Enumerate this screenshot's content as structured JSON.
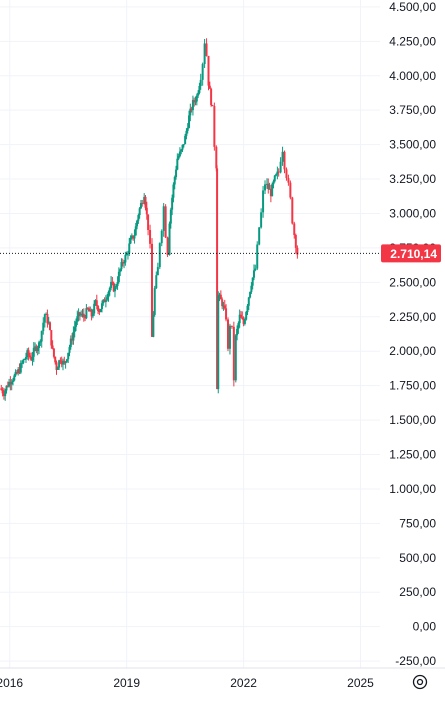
{
  "chart_data": {
    "type": "candlestick",
    "title": "",
    "xlabel": "",
    "ylabel": "",
    "x_ticks": [
      "2016",
      "2019",
      "2022",
      "2025"
    ],
    "y_ticks": [
      "4.500,00",
      "4.250,00",
      "4.000,00",
      "3.750,00",
      "3.500,00",
      "3.250,00",
      "3.000,00",
      "2.750,00",
      "2.500,00",
      "2.250,00",
      "2.000,00",
      "1.750,00",
      "1.500,00",
      "1.250,00",
      "1.000,00",
      "750,00",
      "500,00",
      "250,00",
      "0,00",
      "-250,00"
    ],
    "y_tick_values": [
      4500,
      4250,
      4000,
      3750,
      3500,
      3250,
      3000,
      2750,
      2500,
      2250,
      2000,
      1750,
      1500,
      1250,
      1000,
      750,
      500,
      250,
      0,
      -250
    ],
    "ylim": [
      -300,
      4550
    ],
    "xlim": [
      2015.75,
      2025.5
    ],
    "last_price": 2710.14,
    "last_price_label": "2.710,14",
    "grid": true,
    "colors": {
      "up": "#089981",
      "down": "#f23645",
      "price_label_bg": "#f23645",
      "grid": "#f0f3fa",
      "text": "#131722"
    },
    "series": [
      {
        "values": [
          [
            2015.75,
            1730
          ],
          [
            2015.85,
            1700
          ],
          [
            2015.95,
            1760
          ],
          [
            2016.05,
            1800
          ],
          [
            2016.15,
            1820
          ],
          [
            2016.25,
            1870
          ],
          [
            2016.35,
            1930
          ],
          [
            2016.45,
            1980
          ],
          [
            2016.55,
            1950
          ],
          [
            2016.65,
            2020
          ],
          [
            2016.75,
            2050
          ],
          [
            2016.82,
            2150
          ],
          [
            2016.9,
            2270
          ],
          [
            2017.0,
            2200
          ],
          [
            2017.1,
            2000
          ],
          [
            2017.2,
            1880
          ],
          [
            2017.3,
            1950
          ],
          [
            2017.4,
            1900
          ],
          [
            2017.5,
            2000
          ],
          [
            2017.6,
            2100
          ],
          [
            2017.7,
            2220
          ],
          [
            2017.8,
            2270
          ],
          [
            2017.9,
            2250
          ],
          [
            2018.0,
            2300
          ],
          [
            2018.1,
            2260
          ],
          [
            2018.2,
            2350
          ],
          [
            2018.3,
            2300
          ],
          [
            2018.4,
            2350
          ],
          [
            2018.5,
            2420
          ],
          [
            2018.6,
            2480
          ],
          [
            2018.7,
            2450
          ],
          [
            2018.8,
            2560
          ],
          [
            2018.9,
            2650
          ],
          [
            2019.0,
            2700
          ],
          [
            2019.1,
            2800
          ],
          [
            2019.2,
            2850
          ],
          [
            2019.3,
            3000
          ],
          [
            2019.4,
            3100
          ],
          [
            2019.45,
            3150
          ],
          [
            2019.55,
            2900
          ],
          [
            2019.6,
            2750
          ],
          [
            2019.65,
            2100
          ],
          [
            2019.72,
            2450
          ],
          [
            2019.8,
            2600
          ],
          [
            2019.85,
            2800
          ],
          [
            2019.9,
            2900
          ],
          [
            2019.95,
            3050
          ],
          [
            2020.0,
            2850
          ],
          [
            2020.05,
            2720
          ],
          [
            2020.1,
            2950
          ],
          [
            2020.2,
            3200
          ],
          [
            2020.3,
            3400
          ],
          [
            2020.4,
            3450
          ],
          [
            2020.5,
            3550
          ],
          [
            2020.6,
            3700
          ],
          [
            2020.7,
            3800
          ],
          [
            2020.8,
            3850
          ],
          [
            2020.9,
            4000
          ],
          [
            2020.95,
            4100
          ],
          [
            2021.0,
            4250
          ],
          [
            2021.05,
            4150
          ],
          [
            2021.1,
            3950
          ],
          [
            2021.2,
            3750
          ],
          [
            2021.25,
            3500
          ],
          [
            2021.3,
            3350
          ],
          [
            2021.32,
            1750
          ],
          [
            2021.35,
            2400
          ],
          [
            2021.45,
            2350
          ],
          [
            2021.55,
            2250
          ],
          [
            2021.6,
            2000
          ],
          [
            2021.65,
            2200
          ],
          [
            2021.7,
            2150
          ],
          [
            2021.75,
            1800
          ],
          [
            2021.8,
            2100
          ],
          [
            2021.9,
            2250
          ],
          [
            2022.0,
            2200
          ],
          [
            2022.1,
            2350
          ],
          [
            2022.2,
            2500
          ],
          [
            2022.3,
            2600
          ],
          [
            2022.35,
            2750
          ],
          [
            2022.4,
            2900
          ],
          [
            2022.45,
            3000
          ],
          [
            2022.5,
            3150
          ],
          [
            2022.55,
            3220
          ],
          [
            2022.6,
            3200
          ],
          [
            2022.7,
            3150
          ],
          [
            2022.8,
            3250
          ],
          [
            2022.9,
            3300
          ],
          [
            2022.95,
            3400
          ],
          [
            2023.0,
            3470
          ],
          [
            2023.05,
            3350
          ],
          [
            2023.1,
            3280
          ],
          [
            2023.15,
            3200
          ],
          [
            2023.2,
            3100
          ],
          [
            2023.25,
            2950
          ],
          [
            2023.3,
            2850
          ],
          [
            2023.38,
            2710.14
          ]
        ]
      }
    ]
  },
  "toolbar": {
    "settings_icon": "settings-icon"
  }
}
